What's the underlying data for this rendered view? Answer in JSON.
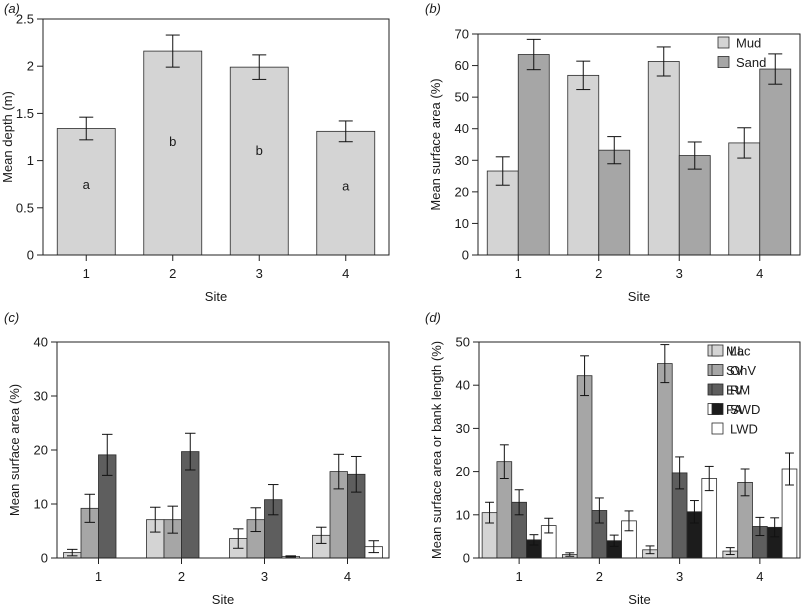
{
  "colors": {
    "light": "#d4d4d4",
    "mid": "#a6a6a6",
    "dark": "#5e5e5e",
    "black": "#1c1c1c",
    "white": "#ffffff",
    "edge": "#2a2a2a"
  },
  "chart_data": [
    {
      "panel_label": "(a)",
      "type": "bar",
      "categories": [
        "1",
        "2",
        "3",
        "4"
      ],
      "xlabel": "Site",
      "ylabel": "Mean depth (m)",
      "ylim": [
        0,
        2.5
      ],
      "yticks": [
        "0",
        "0.5",
        "1",
        "1.5",
        "2",
        "2.5"
      ],
      "legend": "none",
      "series": [
        {
          "values": [
            1.34,
            2.16,
            1.99,
            1.31
          ],
          "errors": [
            0.12,
            0.17,
            0.13,
            0.11
          ],
          "color": "light",
          "annotations": [
            "a",
            "b",
            "b",
            "a"
          ]
        }
      ]
    },
    {
      "panel_label": "(b)",
      "type": "bar",
      "categories": [
        "1",
        "2",
        "3",
        "4"
      ],
      "xlabel": "Site",
      "ylabel": "Mean surface area (%)",
      "ylim": [
        0,
        70
      ],
      "yticks": [
        "0",
        "10",
        "20",
        "30",
        "40",
        "50",
        "60",
        "70"
      ],
      "legend": "top-right",
      "series": [
        {
          "name": "Mud",
          "values": [
            26.6,
            56.9,
            61.3,
            35.5
          ],
          "errors": [
            4.5,
            4.5,
            4.6,
            4.8
          ],
          "color": "light"
        },
        {
          "name": "Sand",
          "values": [
            63.5,
            33.2,
            31.5,
            58.9
          ],
          "errors": [
            4.8,
            4.3,
            4.3,
            4.8
          ],
          "color": "mid"
        }
      ]
    },
    {
      "panel_label": "(c)",
      "type": "bar",
      "categories": [
        "1",
        "2",
        "3",
        "4"
      ],
      "xlabel": "Site",
      "ylabel": "Mean surface area (%)",
      "ylim": [
        0,
        40
      ],
      "yticks": [
        "0",
        "10",
        "20",
        "30",
        "40"
      ],
      "legend": "top-right",
      "series": [
        {
          "name": "Mac",
          "values": [
            1.0,
            7.1,
            3.6,
            4.2
          ],
          "errors": [
            0.6,
            2.3,
            1.8,
            1.5
          ],
          "color": "light"
        },
        {
          "name": "SV",
          "values": [
            9.2,
            7.1,
            7.1,
            16.0
          ],
          "errors": [
            2.6,
            2.5,
            2.2,
            3.2
          ],
          "color": "mid"
        },
        {
          "name": "EV",
          "values": [
            19.1,
            19.7,
            10.8,
            15.5
          ],
          "errors": [
            3.8,
            3.4,
            2.8,
            3.3
          ],
          "color": "dark"
        },
        {
          "name": "FA",
          "values": [
            0.0,
            0.0,
            0.3,
            2.1
          ],
          "errors": [
            0.0,
            0.0,
            0.1,
            1.1
          ],
          "color": "white"
        }
      ]
    },
    {
      "panel_label": "(d)",
      "type": "bar",
      "categories": [
        "1",
        "2",
        "3",
        "4"
      ],
      "xlabel": "Site",
      "ylabel": "Mean surface area or bank length (%)",
      "ylim": [
        0,
        50
      ],
      "yticks": [
        "0",
        "10",
        "20",
        "30",
        "40",
        "50"
      ],
      "legend": "top-right",
      "series": [
        {
          "name": "LL",
          "values": [
            10.5,
            0.8,
            1.9,
            1.6
          ],
          "errors": [
            2.4,
            0.4,
            0.9,
            0.8
          ],
          "color": "light"
        },
        {
          "name": "OhV",
          "values": [
            22.3,
            42.2,
            45.0,
            17.5
          ],
          "errors": [
            3.9,
            4.6,
            4.4,
            3.1
          ],
          "color": "mid"
        },
        {
          "name": "RM",
          "values": [
            12.9,
            11.0,
            19.7,
            7.3
          ],
          "errors": [
            2.9,
            2.9,
            3.7,
            2.1
          ],
          "color": "dark"
        },
        {
          "name": "SWD",
          "values": [
            4.2,
            4.0,
            10.7,
            7.1
          ],
          "errors": [
            1.2,
            1.3,
            2.6,
            2.2
          ],
          "color": "black"
        },
        {
          "name": "LWD",
          "values": [
            7.5,
            8.6,
            18.4,
            20.6
          ],
          "errors": [
            1.7,
            2.3,
            2.8,
            3.7
          ],
          "color": "white"
        }
      ]
    }
  ]
}
